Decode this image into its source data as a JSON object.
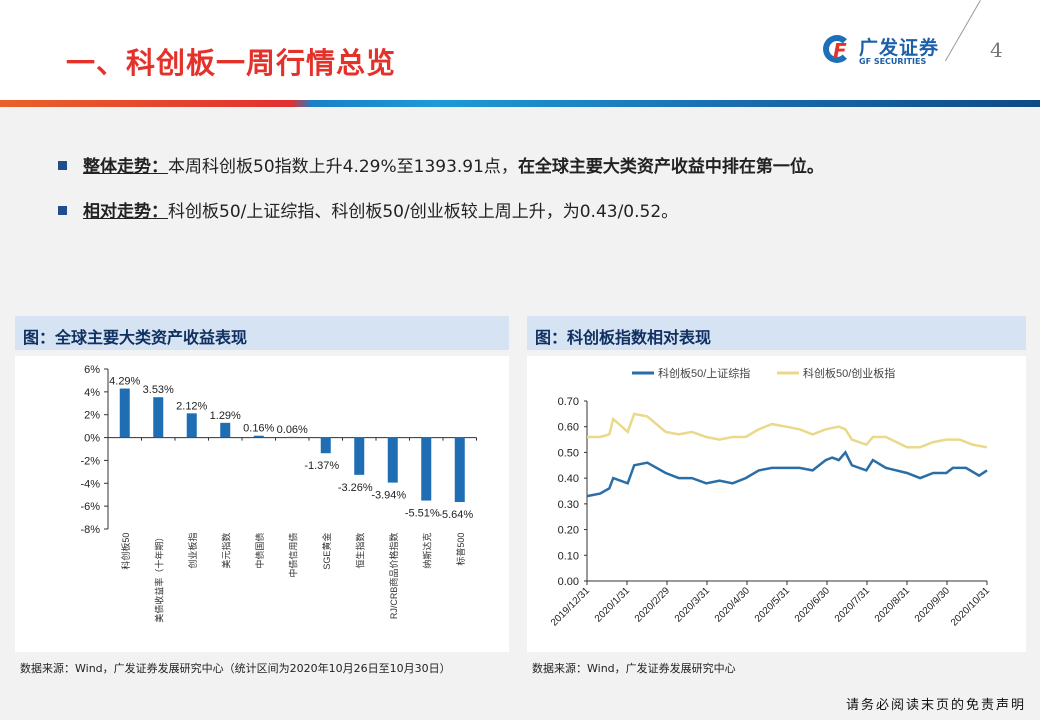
{
  "header": {
    "title": "一、科创板一周行情总览",
    "logo_cn": "广发证券",
    "logo_en": "GF SECURITIES",
    "page_number": "4"
  },
  "bullets": [
    {
      "label": "整体走势：",
      "text": "本周科创板50指数上升4.29%至1393.91点，",
      "emphasis": "在全球主要大类资产收益中排在第一位。"
    },
    {
      "label": "相对走势：",
      "text": "科创板50/上证综指、科创板50/创业板较上周上升，为0.43/0.52。",
      "emphasis": ""
    }
  ],
  "left_panel": {
    "title": "图：全球主要大类资产收益表现",
    "source": "数据来源：Wind，广发证券发展研究中心（统计区间为2020年10月26日至10月30日）"
  },
  "right_panel": {
    "title": "图：科创板指数相对表现",
    "source": "数据来源：Wind，广发证券发展研究中心"
  },
  "footer": "请务必阅读末页的免责声明",
  "chart_data": [
    {
      "type": "bar",
      "title": "全球主要大类资产收益表现",
      "categories": [
        "科创板50",
        "美债收益率（十年期）",
        "创业板指",
        "美元指数",
        "中债国债",
        "中债信用债",
        "SGE黄金",
        "恒生指数",
        "RJ/CRB商品价格指数",
        "纳斯达克",
        "标普500"
      ],
      "values": [
        4.29,
        3.53,
        2.12,
        1.29,
        0.16,
        0.06,
        -1.37,
        -3.26,
        -3.94,
        -5.51,
        -5.64
      ],
      "labels": [
        "4.29%",
        "3.53%",
        "2.12%",
        "1.29%",
        "0.16%",
        "0.06%",
        "-1.37%",
        "-3.26%",
        "-3.94%",
        "-5.51%",
        "-5.64%"
      ],
      "ylim": [
        -8,
        6
      ],
      "yticks": [
        "6%",
        "4%",
        "2%",
        "0%",
        "-2%",
        "-4%",
        "-6%",
        "-8%"
      ],
      "color": "#1f6db3"
    },
    {
      "type": "line",
      "title": "科创板指数相对表现",
      "ylim": [
        0,
        0.7
      ],
      "yticks": [
        "0.70",
        "0.60",
        "0.50",
        "0.40",
        "0.30",
        "0.20",
        "0.10",
        "0.00"
      ],
      "xticks": [
        "2019/12/31",
        "2020/1/31",
        "2020/2/29",
        "2020/3/31",
        "2020/4/30",
        "2020/5/31",
        "2020/6/30",
        "2020/7/31",
        "2020/8/31",
        "2020/9/30",
        "2020/10/31"
      ],
      "legend_position": "top",
      "series": [
        {
          "name": "科创板50/上证综指",
          "color": "#2a6ea8",
          "x": [
            "2019-12-31",
            "2020-01-10",
            "2020-01-17",
            "2020-01-20",
            "2020-01-31",
            "2020-02-05",
            "2020-02-15",
            "2020-02-29",
            "2020-03-10",
            "2020-03-20",
            "2020-03-31",
            "2020-04-10",
            "2020-04-20",
            "2020-04-30",
            "2020-05-10",
            "2020-05-20",
            "2020-05-31",
            "2020-06-10",
            "2020-06-20",
            "2020-06-30",
            "2020-07-05",
            "2020-07-10",
            "2020-07-15",
            "2020-07-20",
            "2020-07-31",
            "2020-08-05",
            "2020-08-15",
            "2020-08-31",
            "2020-09-05",
            "2020-09-10",
            "2020-09-20",
            "2020-09-30",
            "2020-10-05",
            "2020-10-15",
            "2020-10-25",
            "2020-10-31"
          ],
          "y": [
            0.33,
            0.34,
            0.36,
            0.4,
            0.38,
            0.45,
            0.46,
            0.42,
            0.4,
            0.4,
            0.38,
            0.39,
            0.38,
            0.4,
            0.43,
            0.44,
            0.44,
            0.44,
            0.43,
            0.47,
            0.48,
            0.47,
            0.5,
            0.45,
            0.43,
            0.47,
            0.44,
            0.42,
            0.41,
            0.4,
            0.42,
            0.42,
            0.44,
            0.44,
            0.41,
            0.43
          ]
        },
        {
          "name": "科创板50/创业板指",
          "color": "#ead98a",
          "x": [
            "2019-12-31",
            "2020-01-10",
            "2020-01-17",
            "2020-01-20",
            "2020-01-31",
            "2020-02-05",
            "2020-02-15",
            "2020-02-29",
            "2020-03-10",
            "2020-03-20",
            "2020-03-31",
            "2020-04-10",
            "2020-04-20",
            "2020-04-30",
            "2020-05-10",
            "2020-05-20",
            "2020-05-31",
            "2020-06-10",
            "2020-06-20",
            "2020-06-30",
            "2020-07-10",
            "2020-07-15",
            "2020-07-20",
            "2020-07-31",
            "2020-08-05",
            "2020-08-15",
            "2020-08-31",
            "2020-09-10",
            "2020-09-20",
            "2020-09-30",
            "2020-10-10",
            "2020-10-20",
            "2020-10-31"
          ],
          "y": [
            0.56,
            0.56,
            0.57,
            0.63,
            0.58,
            0.65,
            0.64,
            0.58,
            0.57,
            0.58,
            0.56,
            0.55,
            0.56,
            0.56,
            0.59,
            0.61,
            0.6,
            0.59,
            0.57,
            0.59,
            0.6,
            0.59,
            0.55,
            0.53,
            0.56,
            0.56,
            0.52,
            0.52,
            0.54,
            0.55,
            0.55,
            0.53,
            0.52
          ]
        }
      ]
    }
  ]
}
